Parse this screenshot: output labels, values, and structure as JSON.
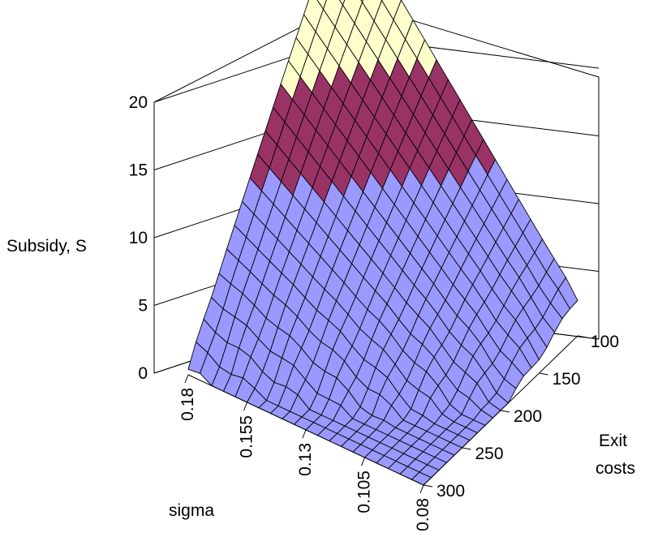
{
  "chart_data": {
    "type": "surface",
    "title": "",
    "zlabel": "Subsidy, S",
    "xlabel": "sigma",
    "ylabel_line1": "Exit",
    "ylabel_line2": "costs",
    "z_ticks": [
      "0",
      "5",
      "10",
      "15",
      "20"
    ],
    "zlim": [
      0,
      20
    ],
    "sigma_ticks": [
      "0.18",
      "0.155",
      "0.13",
      "0.105",
      "0.08"
    ],
    "sigma_range": [
      0.18,
      0.08
    ],
    "exit_ticks": [
      "100",
      "150",
      "200",
      "250",
      "300"
    ],
    "exit_range": [
      100,
      300
    ],
    "band_colors": [
      {
        "range": [
          0,
          10
        ],
        "color": "#9999ff"
      },
      {
        "range": [
          10,
          15
        ],
        "color": "#993366"
      },
      {
        "range": [
          15,
          20
        ],
        "color": "#ffffcc"
      },
      {
        "range": [
          20,
          25
        ],
        "color": "#ccffff"
      }
    ],
    "grid": {
      "sigma_steps": 20,
      "exit_steps": 20
    },
    "surface_description": "S rises with sigma and falls with exit costs; near zero at low sigma / high exit costs, about 22 at sigma 0.18, exit costs 100",
    "corner_values": {
      "sigma_0.18_exit_100": 22,
      "sigma_0.08_exit_100": 2,
      "sigma_0.18_exit_300": 0,
      "sigma_0.08_exit_300": 0
    }
  }
}
